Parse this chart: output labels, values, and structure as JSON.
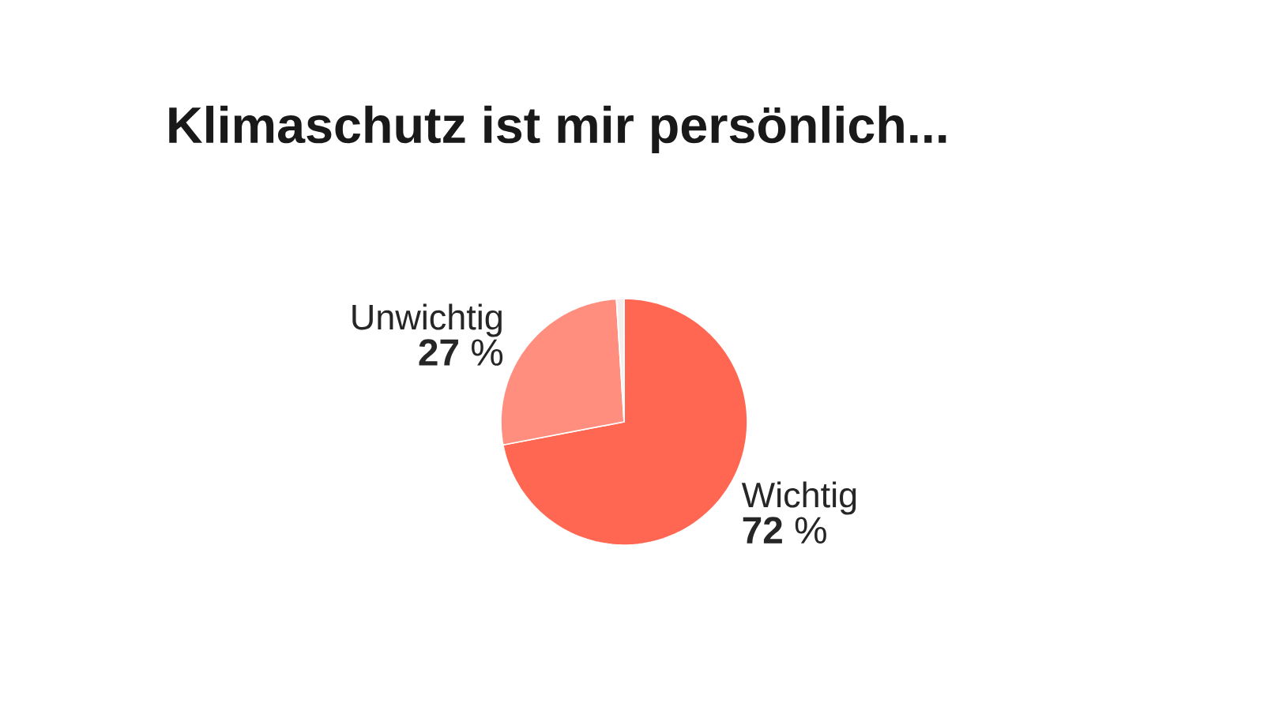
{
  "chart_data": {
    "type": "pie",
    "title": "Klimaschutz ist mir persönlich...",
    "categories": [
      "Wichtig",
      "Unwichtig",
      null
    ],
    "values": [
      72,
      27,
      1
    ],
    "colors": [
      "#ff6752",
      "#ff8e7f",
      "#f4efee"
    ],
    "value_labels": [
      "**72** %",
      "**27** %",
      null
    ]
  }
}
